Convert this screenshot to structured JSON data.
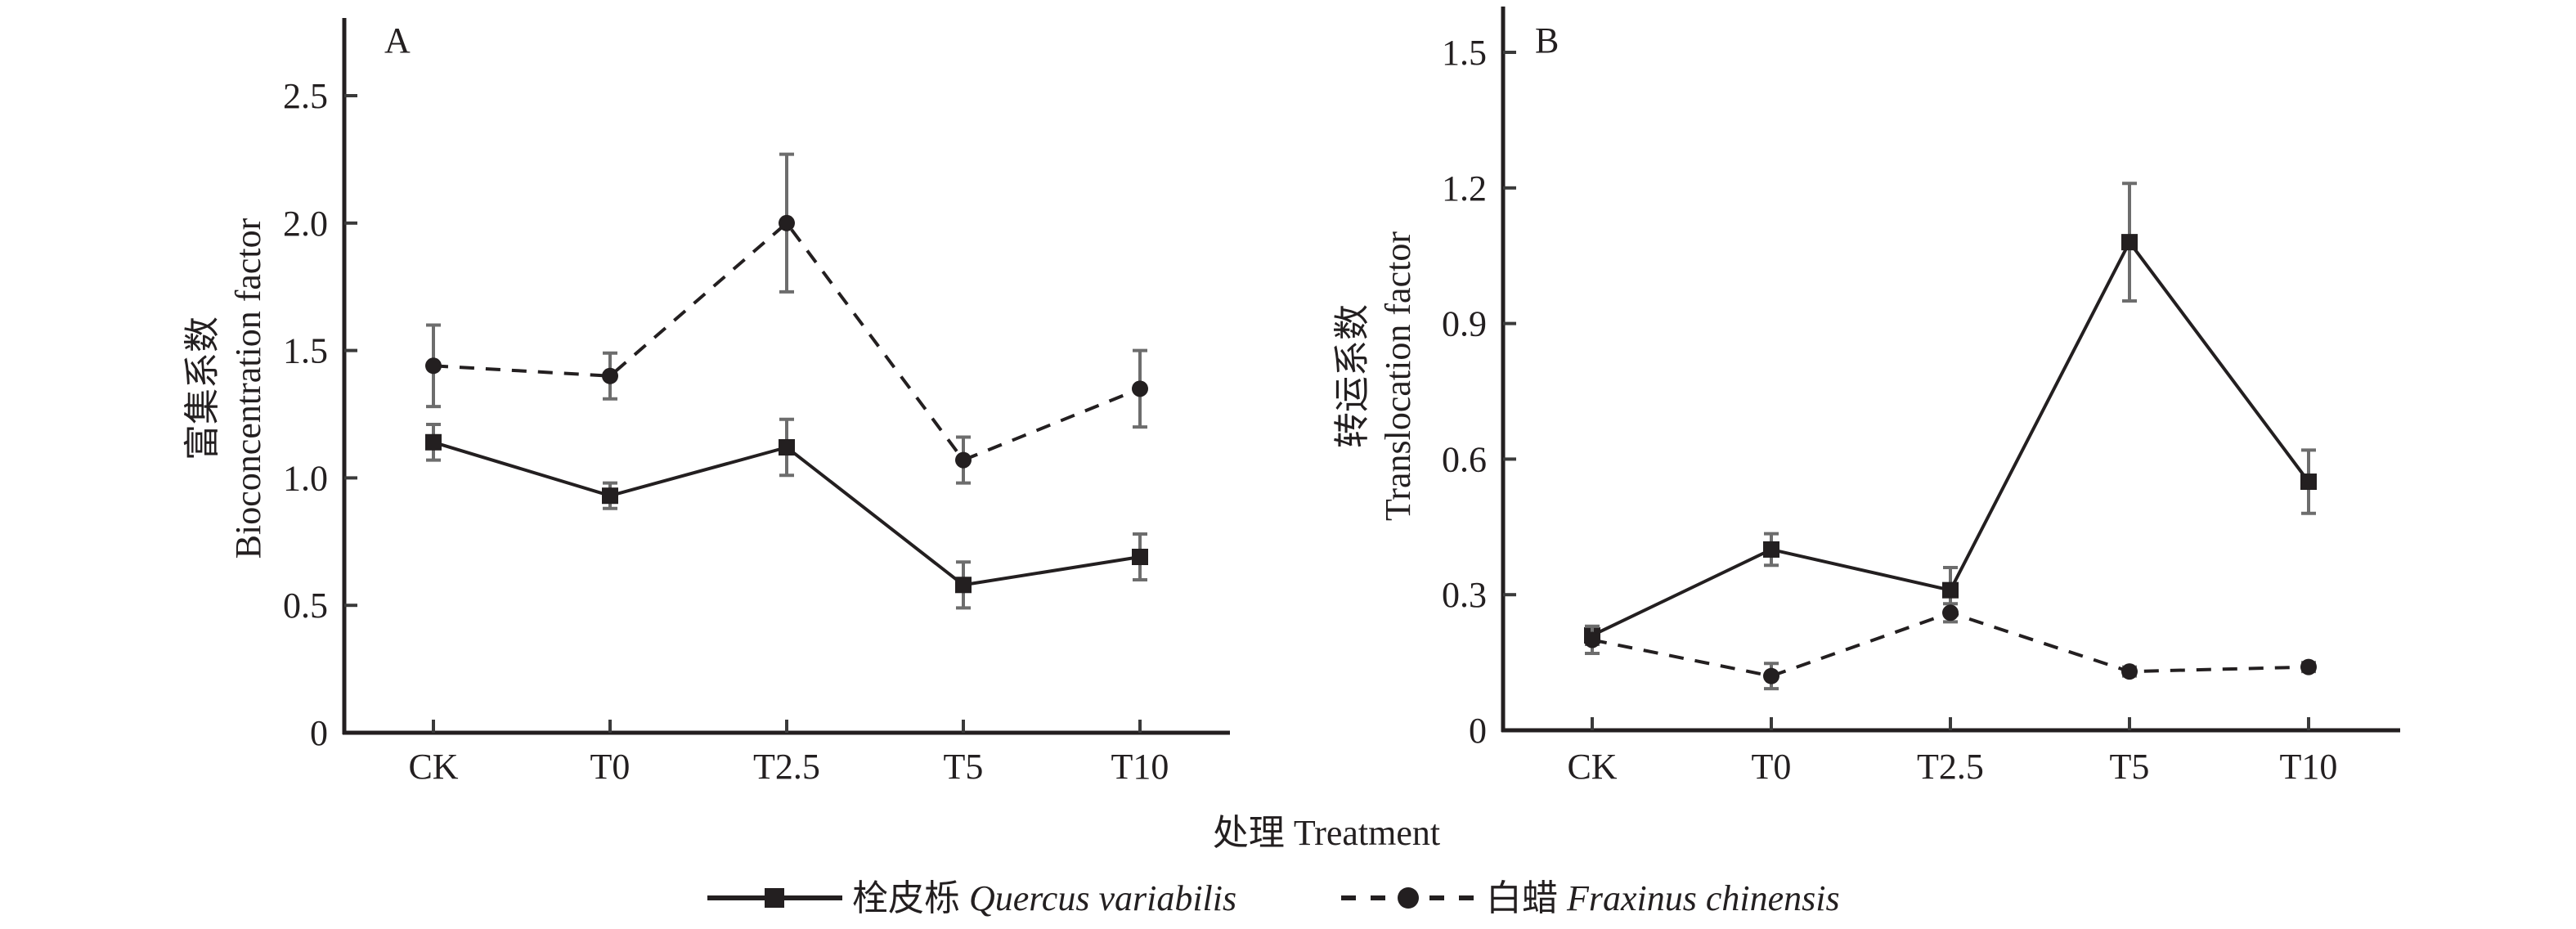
{
  "chart_data": [
    {
      "type": "line",
      "panel_label": "A",
      "title": "",
      "xlabel": "处理 Treatment",
      "ylabel_cn": "富集系数",
      "ylabel_en": "Bioconcentration factor",
      "categories": [
        "CK",
        "T0",
        "T2.5",
        "T5",
        "T10"
      ],
      "ylim": [
        0,
        2.8
      ],
      "yticks": [
        0,
        0.5,
        1.0,
        1.5,
        2.0,
        2.5
      ],
      "ytick_labels": [
        "0",
        "0.5",
        "1.0",
        "1.5",
        "2.0",
        "2.5"
      ],
      "grid": false,
      "series": [
        {
          "name": "栓皮栎 Quercus variabilis",
          "marker": "square",
          "line": "solid",
          "values": [
            1.14,
            0.93,
            1.12,
            0.58,
            0.69
          ],
          "error": [
            0.07,
            0.05,
            0.11,
            0.09,
            0.09
          ]
        },
        {
          "name": "白蜡 Fraxinus chinensis",
          "marker": "circle",
          "line": "dashed",
          "values": [
            1.44,
            1.4,
            2.0,
            1.07,
            1.35
          ],
          "error": [
            0.16,
            0.09,
            0.27,
            0.09,
            0.15
          ]
        }
      ]
    },
    {
      "type": "line",
      "panel_label": "B",
      "title": "",
      "xlabel": "处理 Treatment",
      "ylabel_cn": "转运系数",
      "ylabel_en": "Translocation factor",
      "categories": [
        "CK",
        "T0",
        "T2.5",
        "T5",
        "T10"
      ],
      "ylim": [
        0,
        1.6
      ],
      "yticks": [
        0,
        0.3,
        0.6,
        0.9,
        1.2,
        1.5
      ],
      "ytick_labels": [
        "0",
        "0.3",
        "0.6",
        "0.9",
        "1.2",
        "1.5"
      ],
      "grid": false,
      "series": [
        {
          "name": "栓皮栎 Quercus variabilis",
          "marker": "square",
          "line": "solid",
          "values": [
            0.21,
            0.4,
            0.31,
            1.08,
            0.55
          ],
          "error": [
            0.02,
            0.035,
            0.05,
            0.13,
            0.07
          ]
        },
        {
          "name": "白蜡 Fraxinus chinensis",
          "marker": "circle",
          "line": "dashed",
          "values": [
            0.2,
            0.12,
            0.26,
            0.13,
            0.14
          ],
          "error": [
            0.03,
            0.028,
            0.02,
            0.01,
            0.01
          ]
        }
      ]
    }
  ],
  "shared_xlabel": {
    "cn": "处理",
    "en": "Treatment"
  },
  "legend": {
    "placement": "bottom-center",
    "items": [
      {
        "cn": "栓皮栎",
        "latin": "Quercus variabilis",
        "marker": "square",
        "line": "solid"
      },
      {
        "cn": "白蜡",
        "latin": "Fraxinus chinensis",
        "marker": "circle",
        "line": "dashed"
      }
    ]
  },
  "colors": {
    "ink": "#231f20",
    "errorbar": "#6d6d6d"
  }
}
